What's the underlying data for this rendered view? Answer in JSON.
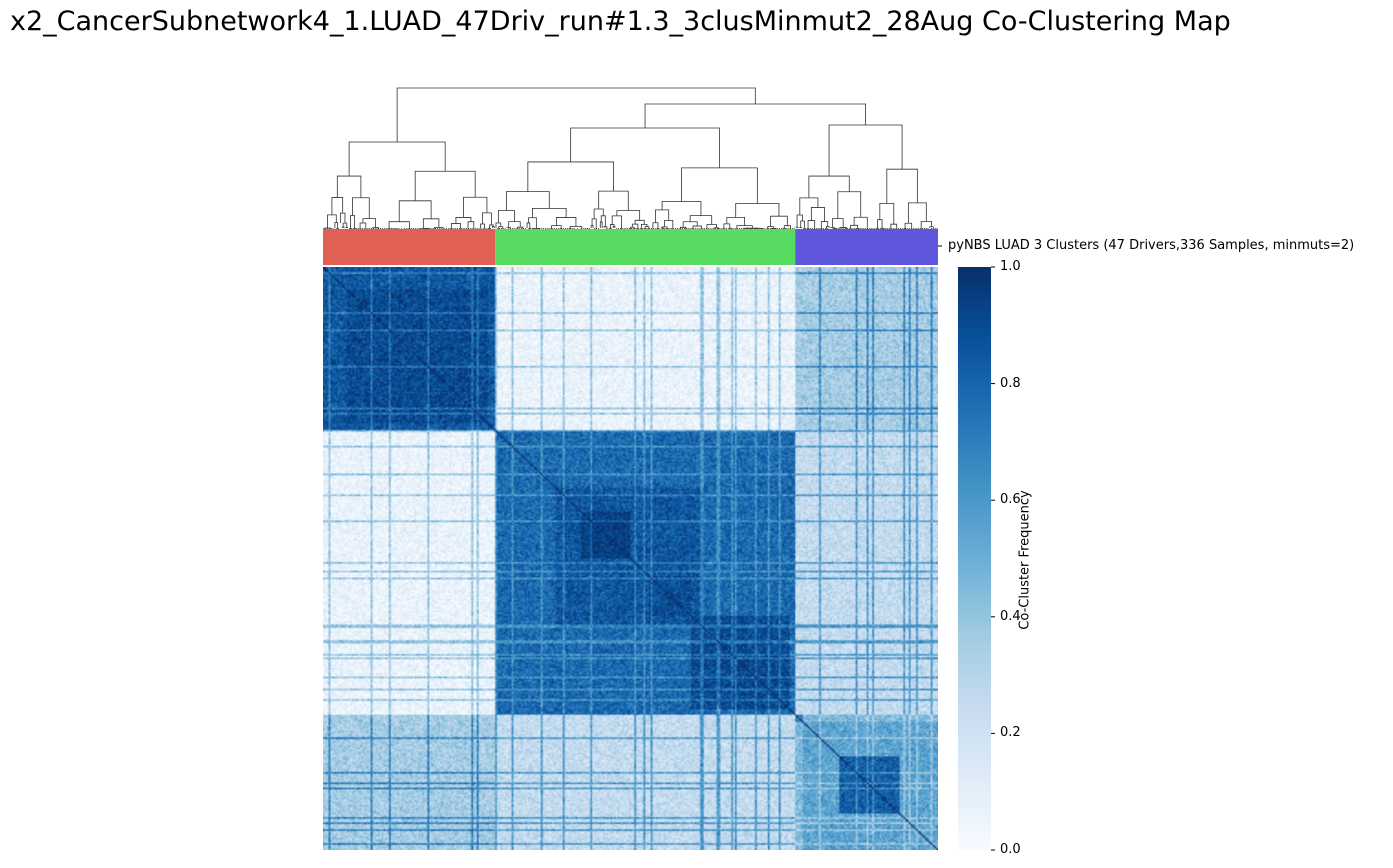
{
  "title": "x2_CancerSubnetwork4_1.LUAD_47Driv_run#1.3_3clusMinmut2_28Aug Co-Clustering Map",
  "chart_data": {
    "type": "heatmap",
    "title": "x2_CancerSubnetwork4_1.LUAD_47Driv_run#1.3_3clusMinmut2_28Aug Co-Clustering Map",
    "n_samples": 336,
    "value_range": [
      0.0,
      1.0
    ],
    "colormap": "Blues",
    "colorbar": {
      "label": "Co-Cluster Frequency",
      "ticks": [
        "0.0",
        "0.2",
        "0.4",
        "0.6",
        "0.8",
        "1.0"
      ],
      "tick_values": [
        0.0,
        0.2,
        0.4,
        0.6,
        0.8,
        1.0
      ]
    },
    "row_color_label": "pyNBS LUAD 3 Clusters (47 Drivers,336 Samples, minmuts=2)",
    "clusters": [
      {
        "index": 1,
        "size": 94,
        "color": "#e06055",
        "mean_within_frequency": 0.85
      },
      {
        "index": 2,
        "size": 164,
        "color": "#57db61",
        "mean_within_frequency": 0.78
      },
      {
        "index": 3,
        "size": 78,
        "color": "#5e57db",
        "mean_within_frequency": 0.45
      }
    ],
    "sub_blocks": [
      {
        "start_fraction": 0.0,
        "end_fraction": 0.28,
        "value": 0.78
      },
      {
        "start_fraction": 0.04,
        "end_fraction": 0.27,
        "value": 0.9
      },
      {
        "start_fraction": 0.28,
        "end_fraction": 0.78,
        "value": 0.72
      },
      {
        "start_fraction": 0.38,
        "end_fraction": 0.62,
        "value": 0.85
      },
      {
        "start_fraction": 0.42,
        "end_fraction": 0.5,
        "value": 0.95
      },
      {
        "start_fraction": 0.53,
        "end_fraction": 0.6,
        "value": 0.9
      },
      {
        "start_fraction": 0.6,
        "end_fraction": 0.76,
        "value": 0.9
      },
      {
        "start_fraction": 0.78,
        "end_fraction": 1.0,
        "value": 0.55
      },
      {
        "start_fraction": 0.84,
        "end_fraction": 0.94,
        "value": 0.82
      }
    ],
    "grid": false,
    "dendrogram": "top"
  }
}
